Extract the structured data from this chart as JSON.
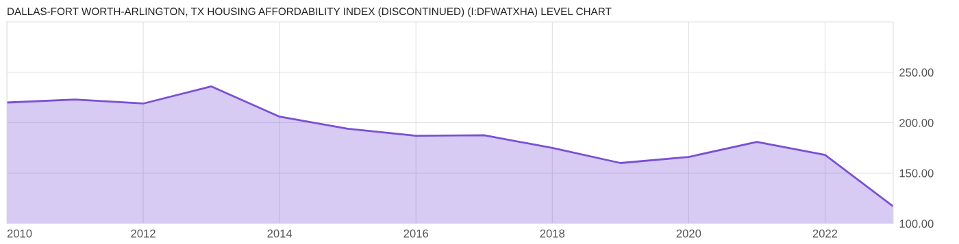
{
  "chart_data": {
    "type": "area",
    "title": "DALLAS-FORT WORTH-ARLINGTON, TX HOUSING AFFORDABILITY INDEX (DISCONTINUED) (I:DFWATXHA) LEVEL CHART",
    "x": [
      2010,
      2011,
      2012,
      2013,
      2014,
      2015,
      2016,
      2017,
      2018,
      2019,
      2020,
      2021,
      2022,
      2023
    ],
    "series": [
      {
        "color": "#7b4fd6",
        "values": [
          220,
          223,
          219,
          236,
          206,
          194,
          187,
          187.5,
          175,
          160,
          166,
          181,
          168,
          117
        ]
      }
    ],
    "xlim": [
      2010,
      2023
    ],
    "xticks": [
      2010,
      2012,
      2014,
      2016,
      2018,
      2020,
      2022
    ],
    "ylim": [
      100,
      300
    ],
    "yticks": [
      {
        "value": 100,
        "label": "100.00"
      },
      {
        "value": 150,
        "label": "150.00"
      },
      {
        "value": 200,
        "label": "200.00"
      },
      {
        "value": 250,
        "label": "250.00"
      }
    ],
    "grid": true
  }
}
